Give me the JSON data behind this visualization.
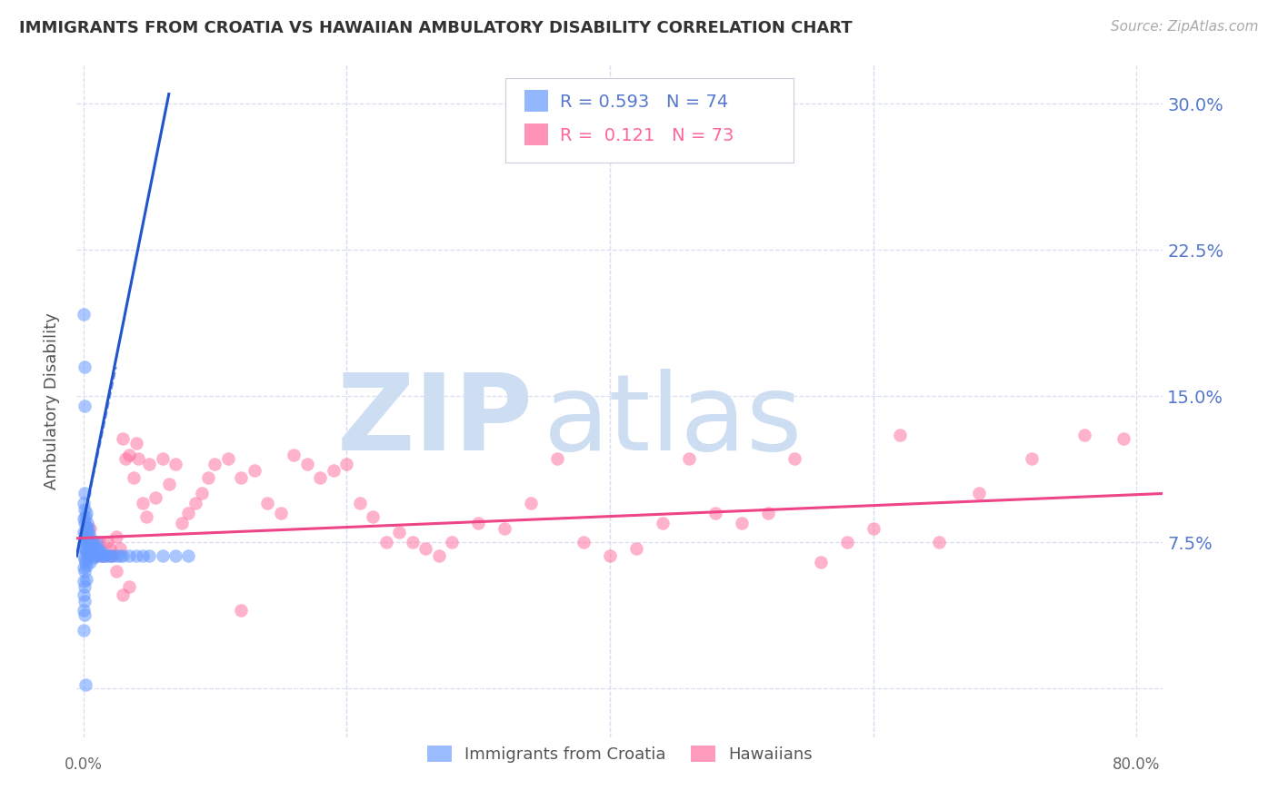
{
  "title": "IMMIGRANTS FROM CROATIA VS HAWAIIAN AMBULATORY DISABILITY CORRELATION CHART",
  "source": "Source: ZipAtlas.com",
  "ylabel": "Ambulatory Disability",
  "yticks": [
    0.0,
    0.075,
    0.15,
    0.225,
    0.3
  ],
  "ytick_labels": [
    "",
    "7.5%",
    "15.0%",
    "22.5%",
    "30.0%"
  ],
  "xlim": [
    -0.005,
    0.82
  ],
  "ylim": [
    -0.025,
    0.32
  ],
  "croatia_color": "#6699ff",
  "hawaiian_color": "#ff6699",
  "trendline_blue": "#2255cc",
  "trendline_pink": "#ee4488",
  "background_color": "#ffffff",
  "grid_color": "#d8dff0",
  "axis_label_color": "#5577cc",
  "title_color": "#333333",
  "croatia_x": [
    0.0005,
    0.0005,
    0.0005,
    0.0005,
    0.0005,
    0.0005,
    0.0005,
    0.0005,
    0.0005,
    0.0005,
    0.001,
    0.001,
    0.001,
    0.001,
    0.001,
    0.001,
    0.001,
    0.001,
    0.001,
    0.001,
    0.0015,
    0.0015,
    0.0015,
    0.0015,
    0.002,
    0.002,
    0.002,
    0.002,
    0.002,
    0.002,
    0.0025,
    0.0025,
    0.003,
    0.003,
    0.003,
    0.0035,
    0.004,
    0.004,
    0.004,
    0.005,
    0.005,
    0.005,
    0.006,
    0.006,
    0.007,
    0.007,
    0.008,
    0.008,
    0.009,
    0.01,
    0.01,
    0.011,
    0.012,
    0.013,
    0.014,
    0.015,
    0.016,
    0.018,
    0.02,
    0.022,
    0.025,
    0.028,
    0.03,
    0.035,
    0.04,
    0.045,
    0.05,
    0.06,
    0.07,
    0.08,
    0.0005,
    0.0008,
    0.0012,
    0.0018
  ],
  "croatia_y": [
    0.095,
    0.087,
    0.08,
    0.074,
    0.068,
    0.062,
    0.055,
    0.048,
    0.04,
    0.03,
    0.1,
    0.092,
    0.085,
    0.078,
    0.072,
    0.066,
    0.06,
    0.052,
    0.045,
    0.038,
    0.088,
    0.08,
    0.072,
    0.065,
    0.09,
    0.083,
    0.076,
    0.07,
    0.063,
    0.056,
    0.082,
    0.075,
    0.085,
    0.078,
    0.07,
    0.08,
    0.082,
    0.075,
    0.068,
    0.078,
    0.072,
    0.065,
    0.076,
    0.07,
    0.075,
    0.068,
    0.073,
    0.067,
    0.072,
    0.075,
    0.068,
    0.072,
    0.07,
    0.068,
    0.07,
    0.068,
    0.068,
    0.068,
    0.068,
    0.068,
    0.068,
    0.068,
    0.068,
    0.068,
    0.068,
    0.068,
    0.068,
    0.068,
    0.068,
    0.068,
    0.192,
    0.165,
    0.145,
    0.002
  ],
  "hawaiian_x": [
    0.005,
    0.008,
    0.01,
    0.012,
    0.015,
    0.018,
    0.02,
    0.022,
    0.025,
    0.028,
    0.03,
    0.032,
    0.035,
    0.038,
    0.04,
    0.042,
    0.045,
    0.048,
    0.05,
    0.055,
    0.06,
    0.065,
    0.07,
    0.075,
    0.08,
    0.085,
    0.09,
    0.095,
    0.1,
    0.11,
    0.12,
    0.13,
    0.14,
    0.15,
    0.16,
    0.17,
    0.18,
    0.19,
    0.2,
    0.21,
    0.22,
    0.23,
    0.24,
    0.25,
    0.26,
    0.27,
    0.28,
    0.3,
    0.32,
    0.34,
    0.36,
    0.38,
    0.4,
    0.42,
    0.44,
    0.46,
    0.48,
    0.5,
    0.52,
    0.54,
    0.56,
    0.58,
    0.6,
    0.62,
    0.65,
    0.68,
    0.72,
    0.76,
    0.79,
    0.025,
    0.03,
    0.035,
    0.12
  ],
  "hawaiian_y": [
    0.082,
    0.075,
    0.068,
    0.075,
    0.068,
    0.075,
    0.072,
    0.068,
    0.078,
    0.072,
    0.128,
    0.118,
    0.12,
    0.108,
    0.126,
    0.118,
    0.095,
    0.088,
    0.115,
    0.098,
    0.118,
    0.105,
    0.115,
    0.085,
    0.09,
    0.095,
    0.1,
    0.108,
    0.115,
    0.118,
    0.108,
    0.112,
    0.095,
    0.09,
    0.12,
    0.115,
    0.108,
    0.112,
    0.115,
    0.095,
    0.088,
    0.075,
    0.08,
    0.075,
    0.072,
    0.068,
    0.075,
    0.085,
    0.082,
    0.095,
    0.118,
    0.075,
    0.068,
    0.072,
    0.085,
    0.118,
    0.09,
    0.085,
    0.09,
    0.118,
    0.065,
    0.075,
    0.082,
    0.13,
    0.075,
    0.1,
    0.118,
    0.13,
    0.128,
    0.06,
    0.048,
    0.052,
    0.04
  ],
  "croatia_trendline_x": [
    -0.005,
    0.065
  ],
  "croatia_trendline_y": [
    0.068,
    0.305
  ],
  "hawaiian_trendline_x": [
    -0.005,
    0.82
  ],
  "hawaiian_trendline_y": [
    0.077,
    0.1
  ]
}
